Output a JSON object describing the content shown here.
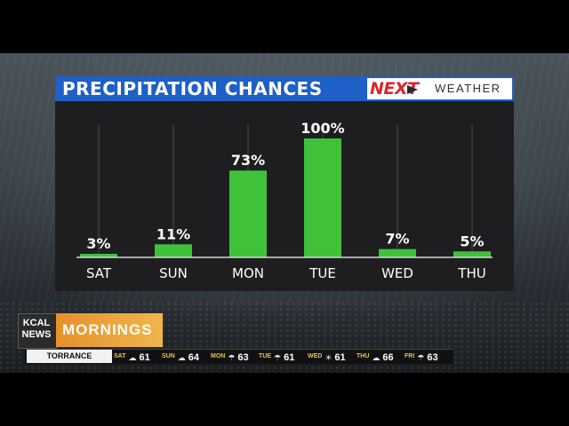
{
  "graphic": {
    "title": "PRECIPITATION CHANCES",
    "brand_next": "NEXT",
    "brand_weather": "WEATHER"
  },
  "chart_data": {
    "type": "bar",
    "title": "PRECIPITATION CHANCES",
    "categories": [
      "SAT",
      "SUN",
      "MON",
      "TUE",
      "WED",
      "THU"
    ],
    "values": [
      3,
      11,
      73,
      100,
      7,
      5
    ],
    "value_labels": [
      "3%",
      "11%",
      "73%",
      "100%",
      "7%",
      "5%"
    ],
    "ylim": [
      0,
      100
    ],
    "bar_color": "#3fc23a",
    "grid": true
  },
  "station": {
    "logo_line1": "KCAL",
    "logo_line2": "NEWS",
    "show": "MORNINGS"
  },
  "ticker": {
    "city": "TORRANCE",
    "days": [
      {
        "day": "SAT",
        "icon": "cloud-sun-icon",
        "glyph": "☁",
        "temp": "61"
      },
      {
        "day": "SUN",
        "icon": "cloud-icon",
        "glyph": "☁",
        "temp": "64"
      },
      {
        "day": "MON",
        "icon": "rain-cloud-icon",
        "glyph": "☂",
        "temp": "63"
      },
      {
        "day": "TUE",
        "icon": "storm-cloud-icon",
        "glyph": "☂",
        "temp": "61"
      },
      {
        "day": "WED",
        "icon": "sun-icon",
        "glyph": "☀",
        "temp": "61"
      },
      {
        "day": "THU",
        "icon": "cloud-icon",
        "glyph": "☁",
        "temp": "66"
      },
      {
        "day": "FRI",
        "icon": "rain-cloud-icon",
        "glyph": "☂",
        "temp": "63"
      }
    ]
  },
  "colors": {
    "title_bar": "#1e5fc8",
    "bar": "#3fc23a",
    "accent_orange": "#e7902c",
    "brand_red": "#d9262c"
  }
}
